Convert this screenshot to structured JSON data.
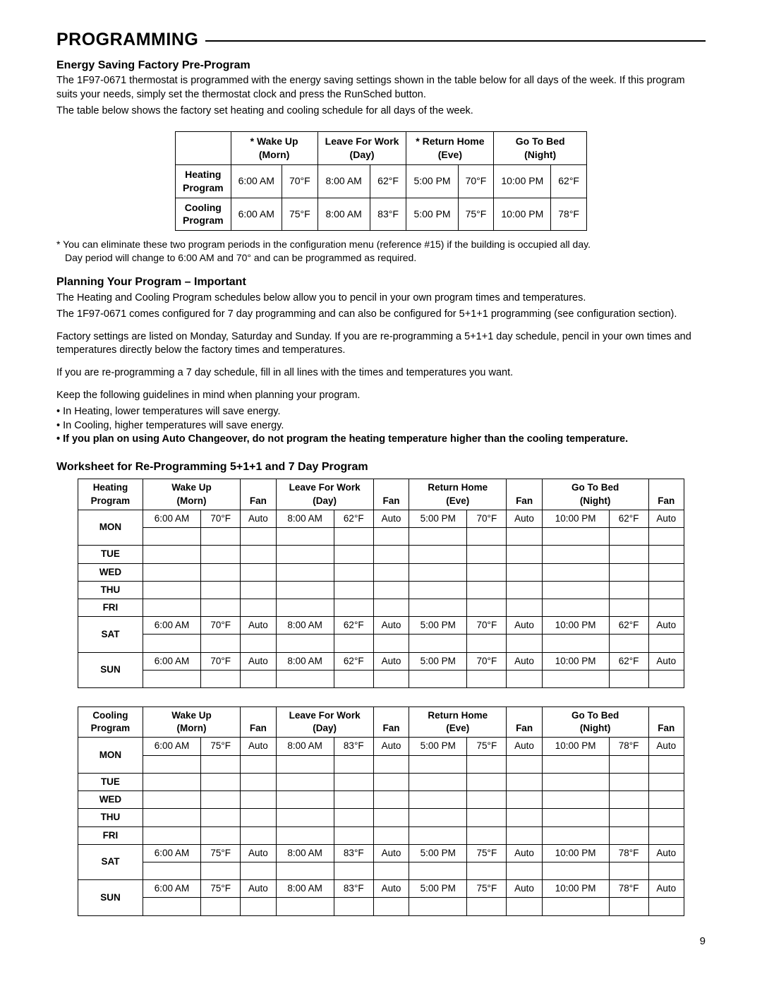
{
  "section_title": "PROGRAMMING",
  "sub1_title": "Energy Saving Factory Pre-Program",
  "sub1_p1": "The 1F97-0671 thermostat is programmed with the energy saving settings shown in the table below for all days of the week. If this program suits your needs, simply set the thermostat clock and press the RunSched button.",
  "sub1_p2": "The table below shows the factory set heating and cooling schedule for all days of the week.",
  "factory_table": {
    "headers": [
      {
        "l1": "* Wake Up",
        "l2": "(Morn)"
      },
      {
        "l1": "Leave For Work",
        "l2": "(Day)"
      },
      {
        "l1": "* Return Home",
        "l2": "(Eve)"
      },
      {
        "l1": "Go To Bed",
        "l2": "(Night)"
      }
    ],
    "rows": [
      {
        "label_l1": "Heating",
        "label_l2": "Program",
        "cells": [
          "6:00 AM",
          "70°F",
          "8:00 AM",
          "62°F",
          "5:00 PM",
          "70°F",
          "10:00 PM",
          "62°F"
        ]
      },
      {
        "label_l1": "Cooling",
        "label_l2": "Program",
        "cells": [
          "6:00 AM",
          "75°F",
          "8:00 AM",
          "83°F",
          "5:00 PM",
          "75°F",
          "10:00 PM",
          "78°F"
        ]
      }
    ]
  },
  "footnote_l1": "* You can eliminate these two program periods in the configuration menu (reference #15) if the building is occupied all day.",
  "footnote_l2": "Day period will change to 6:00 AM and 70° and can be programmed as required.",
  "sub2_title": "Planning Your Program – Important",
  "sub2_p1": "The Heating and Cooling Program schedules below allow you to pencil in your own program times and temperatures.",
  "sub2_p2": "The 1F97-0671 comes configured for 7 day programming and can also be configured for 5+1+1 programming (see configuration section).",
  "sub2_p3": "Factory settings are listed on Monday, Saturday and Sunday. If you are re-programming a 5+1+1 day schedule, pencil in your own times and temperatures directly below the factory times and temperatures.",
  "sub2_p4": "If you are re-programming a 7 day schedule, fill in all lines with the times and temperatures you want.",
  "sub2_p5": "Keep the following guidelines in mind when planning your program.",
  "bullet1": "• In Heating, lower temperatures will save energy.",
  "bullet2": "• In Cooling, higher temperatures will save energy.",
  "bullet3": "• If you plan on using Auto Changeover, do not program the heating temperature higher than the cooling temperature.",
  "worksheet_title": "Worksheet for Re-Programming 5+1+1 and 7 Day Program",
  "worksheet_headers": {
    "periods": [
      {
        "l1": "Wake Up",
        "l2": "(Morn)"
      },
      {
        "l1": "Leave For Work",
        "l2": "(Day)"
      },
      {
        "l1": "Return Home",
        "l2": "(Eve)"
      },
      {
        "l1": "Go To Bed",
        "l2": "(Night)"
      }
    ],
    "fan": "Fan"
  },
  "heating_label": {
    "l1": "Heating",
    "l2": "Program"
  },
  "cooling_label": {
    "l1": "Cooling",
    "l2": "Program"
  },
  "days_full": [
    "MON",
    "TUE",
    "WED",
    "THU",
    "FRI",
    "SAT",
    "SUN"
  ],
  "heating_rows": {
    "MON": [
      "6:00 AM",
      "70°F",
      "Auto",
      "8:00 AM",
      "62°F",
      "Auto",
      "5:00 PM",
      "70°F",
      "Auto",
      "10:00 PM",
      "62°F",
      "Auto"
    ],
    "SAT": [
      "6:00 AM",
      "70°F",
      "Auto",
      "8:00 AM",
      "62°F",
      "Auto",
      "5:00 PM",
      "70°F",
      "Auto",
      "10:00 PM",
      "62°F",
      "Auto"
    ],
    "SUN": [
      "6:00 AM",
      "70°F",
      "Auto",
      "8:00 AM",
      "62°F",
      "Auto",
      "5:00 PM",
      "70°F",
      "Auto",
      "10:00 PM",
      "62°F",
      "Auto"
    ]
  },
  "cooling_rows": {
    "MON": [
      "6:00 AM",
      "75°F",
      "Auto",
      "8:00 AM",
      "83°F",
      "Auto",
      "5:00 PM",
      "75°F",
      "Auto",
      "10:00 PM",
      "78°F",
      "Auto"
    ],
    "SAT": [
      "6:00 AM",
      "75°F",
      "Auto",
      "8:00 AM",
      "83°F",
      "Auto",
      "5:00 PM",
      "75°F",
      "Auto",
      "10:00 PM",
      "78°F",
      "Auto"
    ],
    "SUN": [
      "6:00 AM",
      "75°F",
      "Auto",
      "8:00 AM",
      "83°F",
      "Auto",
      "5:00 PM",
      "75°F",
      "Auto",
      "10:00 PM",
      "78°F",
      "Auto"
    ]
  },
  "page_number": "9"
}
